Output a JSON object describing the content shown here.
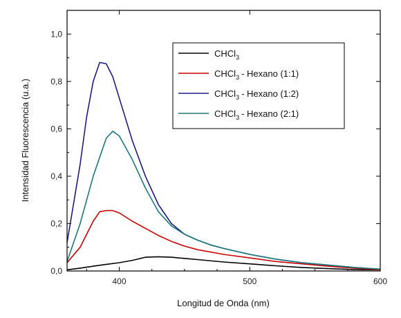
{
  "chart_data": {
    "type": "line",
    "title": "",
    "xlabel": "Longitud de Onda (nm)",
    "ylabel": "Intensidad Fluorescencia (u.a.)",
    "xlim": [
      360,
      600
    ],
    "ylim": [
      0.0,
      1.1
    ],
    "x_ticks": [
      400,
      500,
      600
    ],
    "x_tick_labels": [
      "400",
      "500",
      "600"
    ],
    "y_ticks": [
      0.0,
      0.2,
      0.4,
      0.6,
      0.8,
      1.0
    ],
    "y_tick_labels": [
      "0,0",
      "0,2",
      "0,4",
      "0,6",
      "0,8",
      "1,0"
    ],
    "grid": false,
    "legend_position": "top-right",
    "series": [
      {
        "name": "CHCl3",
        "color": "#000000",
        "x": [
          360,
          370,
          380,
          390,
          400,
          410,
          420,
          430,
          440,
          450,
          460,
          480,
          500,
          520,
          540,
          560,
          580,
          600
        ],
        "y": [
          0.005,
          0.012,
          0.02,
          0.028,
          0.035,
          0.045,
          0.058,
          0.06,
          0.058,
          0.053,
          0.048,
          0.038,
          0.03,
          0.022,
          0.015,
          0.01,
          0.006,
          0.005
        ]
      },
      {
        "name": "CHCl3 - Hexano (1:1)",
        "color": "#cc0000",
        "x": [
          360,
          370,
          380,
          385,
          390,
          395,
          400,
          410,
          420,
          430,
          440,
          450,
          460,
          480,
          500,
          520,
          540,
          560,
          580,
          600
        ],
        "y": [
          0.035,
          0.1,
          0.21,
          0.25,
          0.255,
          0.255,
          0.245,
          0.21,
          0.18,
          0.15,
          0.125,
          0.105,
          0.09,
          0.07,
          0.055,
          0.04,
          0.03,
          0.02,
          0.012,
          0.005
        ]
      },
      {
        "name": "CHCl3 - Hexano (1:2)",
        "color": "#1a1a8c",
        "x": [
          360,
          370,
          375,
          380,
          385,
          390,
          395,
          400,
          410,
          420,
          430,
          440,
          450,
          460,
          470,
          480,
          500,
          520,
          540,
          560,
          580,
          600
        ],
        "y": [
          0.12,
          0.45,
          0.65,
          0.8,
          0.88,
          0.875,
          0.82,
          0.73,
          0.55,
          0.4,
          0.28,
          0.2,
          0.155,
          0.13,
          0.11,
          0.095,
          0.07,
          0.05,
          0.035,
          0.025,
          0.015,
          0.008
        ]
      },
      {
        "name": "CHCl3 - Hexano (2:1)",
        "color": "#1a7a7a",
        "x": [
          360,
          370,
          380,
          390,
          395,
          400,
          410,
          420,
          430,
          440,
          450,
          460,
          470,
          480,
          500,
          520,
          540,
          560,
          580,
          600
        ],
        "y": [
          0.04,
          0.2,
          0.4,
          0.56,
          0.59,
          0.57,
          0.47,
          0.35,
          0.25,
          0.19,
          0.155,
          0.13,
          0.11,
          0.095,
          0.07,
          0.05,
          0.035,
          0.025,
          0.015,
          0.008
        ]
      }
    ]
  },
  "legend": {
    "items": [
      {
        "base": "CHCl",
        "sub": "3",
        "rest": ""
      },
      {
        "base": "CHCl",
        "sub": "3",
        "rest": "- Hexano (1:1)"
      },
      {
        "base": "CHCl",
        "sub": "3",
        "rest": "- Hexano (1:2)"
      },
      {
        "base": "CHCl",
        "sub": "3",
        "rest": "- Hexano (2:1)"
      }
    ]
  }
}
